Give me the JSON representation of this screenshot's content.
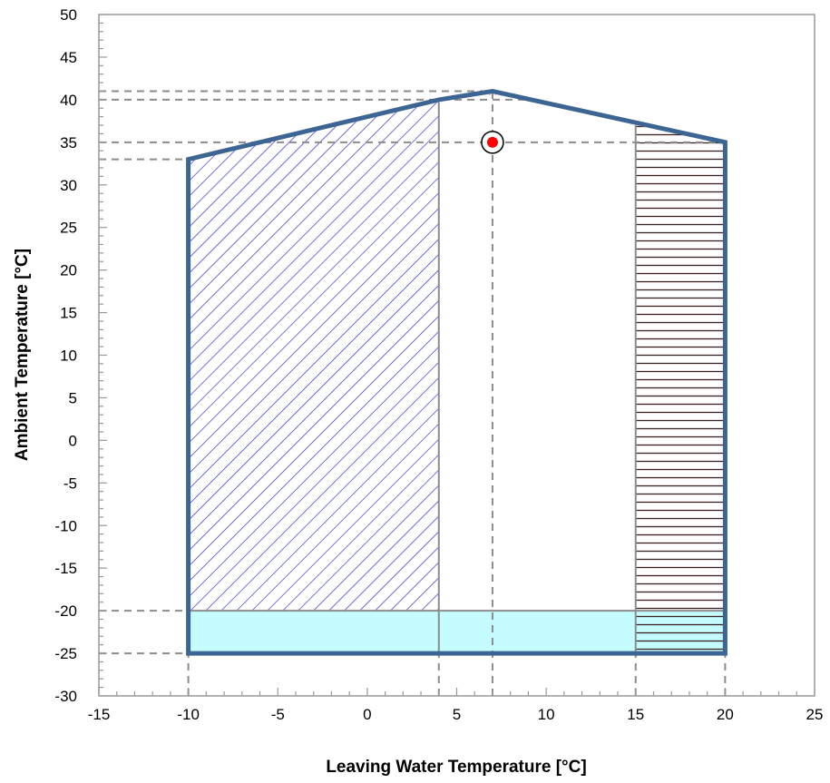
{
  "chart_data": {
    "type": "area",
    "title": "",
    "xlabel": "Leaving Water Temperature [°C]",
    "ylabel": "Ambient Temperature [°C]",
    "xlim": [
      -15,
      25
    ],
    "ylim": [
      -30,
      50
    ],
    "x_major_ticks": [
      -15,
      -10,
      -5,
      0,
      5,
      10,
      15,
      20,
      25
    ],
    "y_major_ticks": [
      -30,
      -25,
      -20,
      -15,
      -10,
      -5,
      0,
      5,
      10,
      15,
      20,
      25,
      30,
      35,
      40,
      45,
      50
    ],
    "x_minor_step": 1,
    "y_minor_step": 1,
    "grid": false,
    "envelope": {
      "points": [
        [
          -10,
          -25
        ],
        [
          -10,
          33
        ],
        [
          4,
          40
        ],
        [
          7,
          41
        ],
        [
          20,
          35
        ],
        [
          20,
          -25
        ]
      ],
      "color": "#3D6594"
    },
    "regions": [
      {
        "pattern": "diagonal-hatch",
        "color": "#2424C8",
        "points": [
          [
            -10,
            -25
          ],
          [
            -10,
            33
          ],
          [
            4,
            39.7
          ],
          [
            4,
            -25
          ]
        ]
      },
      {
        "pattern": "cyan-fill",
        "color": "#C4FCFF",
        "points": [
          [
            -10,
            -25
          ],
          [
            -10,
            -20
          ],
          [
            20,
            -20
          ],
          [
            20,
            -25
          ]
        ]
      },
      {
        "pattern": "horizontal-hatch",
        "color": "#3A2020",
        "points": [
          [
            15,
            -25
          ],
          [
            15,
            37
          ],
          [
            20,
            35
          ],
          [
            20,
            -25
          ]
        ]
      },
      {
        "pattern": "small-diagonal-hatch",
        "color": "#C05060",
        "points": [
          [
            6,
            40.6
          ],
          [
            7,
            41
          ],
          [
            8.5,
            40.4
          ]
        ]
      }
    ],
    "boundary_lines": [
      {
        "x1": 4,
        "y1": -25,
        "x2": 4,
        "y2": 39.7
      },
      {
        "x1": 15,
        "y1": -25,
        "x2": 15,
        "y2": 37
      },
      {
        "x1": -10,
        "y1": -20,
        "x2": 20,
        "y2": -20
      }
    ],
    "reference_lines": [
      {
        "x1": -15,
        "y1": 41,
        "x2": 7,
        "y2": 41
      },
      {
        "x1": -15,
        "y1": 40,
        "x2": 9,
        "y2": 40
      },
      {
        "x1": -15,
        "y1": 35,
        "x2": 20,
        "y2": 35
      },
      {
        "x1": -15,
        "y1": 33,
        "x2": -10,
        "y2": 33
      },
      {
        "x1": -15,
        "y1": -20,
        "x2": -10,
        "y2": -20
      },
      {
        "x1": -15,
        "y1": -25,
        "x2": -10,
        "y2": -25
      },
      {
        "x1": -10,
        "y1": -30,
        "x2": -10,
        "y2": -25
      },
      {
        "x1": 4,
        "y1": -30,
        "x2": 4,
        "y2": -25
      },
      {
        "x1": 7,
        "y1": -30,
        "x2": 7,
        "y2": 41
      },
      {
        "x1": 15,
        "y1": -30,
        "x2": 15,
        "y2": -25
      },
      {
        "x1": 20,
        "y1": -30,
        "x2": 20,
        "y2": -25
      }
    ],
    "marker": {
      "x": 7,
      "y": 35,
      "color": "#FF0000"
    }
  }
}
